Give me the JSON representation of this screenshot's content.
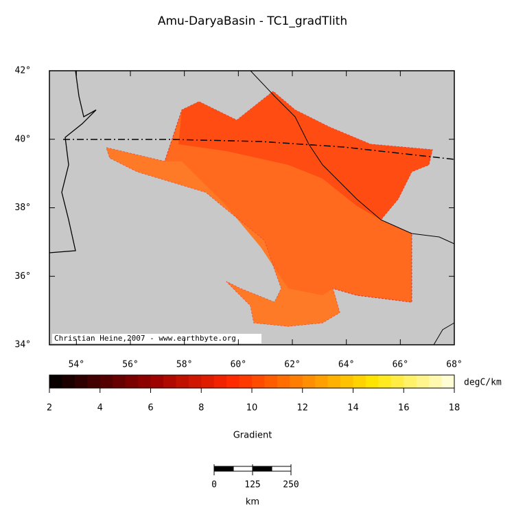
{
  "title": "Amu-DaryaBasin - TC1_gradTlith",
  "credit": "Christian Heine,2007 - www.earthbyte.org",
  "map": {
    "lon_range": [
      53,
      68
    ],
    "lat_range": [
      34,
      42
    ],
    "lon_ticks": [
      {
        "value": 54,
        "label": "54°"
      },
      {
        "value": 56,
        "label": "56°"
      },
      {
        "value": 58,
        "label": "58°"
      },
      {
        "value": 60,
        "label": "60°"
      },
      {
        "value": 62,
        "label": "62°"
      },
      {
        "value": 64,
        "label": "64°"
      },
      {
        "value": 66,
        "label": "66°"
      },
      {
        "value": 68,
        "label": "68°"
      }
    ],
    "lat_ticks": [
      {
        "value": 34,
        "label": "34°"
      },
      {
        "value": 36,
        "label": "36°"
      },
      {
        "value": 38,
        "label": "38°"
      },
      {
        "value": 40,
        "label": "40°"
      },
      {
        "value": 42,
        "label": "42°"
      }
    ]
  },
  "colorbar": {
    "range": [
      2,
      18
    ],
    "ticks": [
      2,
      4,
      6,
      8,
      10,
      12,
      14,
      16,
      18
    ],
    "unit": "degC/km",
    "label": "Gradient"
  },
  "scalebar": {
    "range": [
      0,
      250
    ],
    "ticks": [
      0,
      125,
      250
    ],
    "unit": "km"
  }
}
